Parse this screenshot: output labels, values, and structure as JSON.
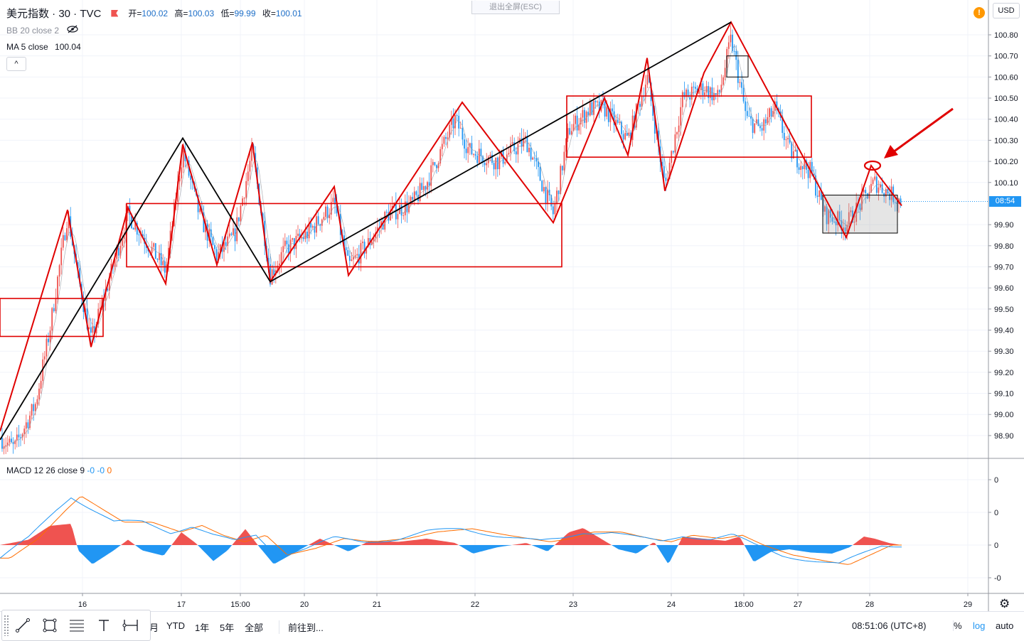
{
  "header": {
    "symbol": "美元指数 · 30 · TVC",
    "open_label": "开=",
    "open": "100.02",
    "high_label": "高=",
    "high": "100.03",
    "low_label": "低=",
    "low": "99.99",
    "close_label": "收=",
    "close": "100.01"
  },
  "indicators": {
    "bb": "BB 20 close 2",
    "ma_label": "MA 5 close",
    "ma_value": "100.04"
  },
  "exit_fullscreen": "退出全屏(ESC)",
  "currency": "USD",
  "price_tag": "08:54",
  "macd": {
    "label": "MACD 12 26 close 9",
    "v1": "-0",
    "v2": "-0",
    "v3": "0"
  },
  "toolbar": {
    "ranges": [
      "月",
      "YTD",
      "1年",
      "5年",
      "全部"
    ],
    "goto": "前往到...",
    "time": "08:51:06 (UTC+8)",
    "percent": "%",
    "log": "log",
    "auto": "auto"
  },
  "colors": {
    "up": "#ef5350",
    "down": "#2196f3",
    "annotation": "#e00000",
    "trend": "#000000",
    "signal": "#ff6d00"
  },
  "chart_data": [
    {
      "type": "candlestick",
      "title": "美元指数 · 30 · TVC",
      "ylim": [
        98.82,
        100.9
      ],
      "yticks": [
        "100.80",
        "100.70",
        "100.60",
        "100.50",
        "100.40",
        "100.30",
        "100.20",
        "100.10",
        "99.90",
        "99.80",
        "99.70",
        "99.60",
        "99.50",
        "99.40",
        "99.30",
        "99.20",
        "99.10",
        "99.00",
        "98.90"
      ],
      "xticks": [
        "16",
        "17",
        "15:00",
        "20",
        "21",
        "22",
        "23",
        "24",
        "18:00",
        "27",
        "28",
        "29"
      ],
      "last_price": "100.01",
      "zigzag_red": [
        [
          0,
          98.92
        ],
        [
          95,
          99.97
        ],
        [
          128,
          99.32
        ],
        [
          180,
          99.98
        ],
        [
          233,
          99.62
        ],
        [
          257,
          100.28
        ],
        [
          305,
          99.71
        ],
        [
          355,
          100.29
        ],
        [
          380,
          99.63
        ],
        [
          470,
          100.08
        ],
        [
          490,
          99.66
        ],
        [
          650,
          100.48
        ],
        [
          778,
          99.91
        ],
        [
          850,
          100.5
        ],
        [
          883,
          100.23
        ],
        [
          910,
          100.69
        ],
        [
          935,
          100.06
        ],
        [
          990,
          100.62
        ],
        [
          1028,
          100.86
        ],
        [
          1190,
          99.84
        ],
        [
          1225,
          100.18
        ],
        [
          1268,
          99.99
        ]
      ],
      "trendline_black": [
        [
          0,
          98.88
        ],
        [
          257,
          100.31
        ],
        [
          380,
          99.63
        ],
        [
          1028,
          100.86
        ]
      ],
      "boxes": [
        {
          "x0": 0,
          "x1": 145,
          "low": 99.37,
          "high": 99.55
        },
        {
          "x0": 178,
          "x1": 790,
          "low": 99.7,
          "high": 100.0
        },
        {
          "x0": 797,
          "x1": 1141,
          "low": 100.22,
          "high": 100.51
        },
        {
          "x0": 1157,
          "x1": 1262,
          "low": 99.86,
          "high": 100.04
        },
        {
          "x0": 1022,
          "x1": 1052,
          "low": 100.6,
          "high": 100.7
        }
      ],
      "candle_path": [
        [
          0,
          98.89
        ],
        [
          20,
          98.84
        ],
        [
          50,
          99.05
        ],
        [
          70,
          99.4
        ],
        [
          95,
          99.95
        ],
        [
          110,
          99.65
        ],
        [
          128,
          99.35
        ],
        [
          150,
          99.6
        ],
        [
          180,
          99.95
        ],
        [
          210,
          99.8
        ],
        [
          233,
          99.68
        ],
        [
          257,
          100.25
        ],
        [
          280,
          99.95
        ],
        [
          305,
          99.75
        ],
        [
          330,
          99.85
        ],
        [
          355,
          100.25
        ],
        [
          380,
          99.66
        ],
        [
          400,
          99.78
        ],
        [
          430,
          99.85
        ],
        [
          470,
          100.0
        ],
        [
          490,
          99.7
        ],
        [
          520,
          99.82
        ],
        [
          545,
          99.95
        ],
        [
          580,
          100.0
        ],
        [
          600,
          100.1
        ],
        [
          640,
          100.4
        ],
        [
          660,
          100.25
        ],
        [
          700,
          100.2
        ],
        [
          740,
          100.3
        ],
        [
          778,
          99.95
        ],
        [
          800,
          100.35
        ],
        [
          830,
          100.45
        ],
        [
          850,
          100.45
        ],
        [
          883,
          100.3
        ],
        [
          910,
          100.6
        ],
        [
          935,
          100.08
        ],
        [
          960,
          100.5
        ],
        [
          990,
          100.55
        ],
        [
          1010,
          100.5
        ],
        [
          1028,
          100.78
        ],
        [
          1050,
          100.4
        ],
        [
          1070,
          100.35
        ],
        [
          1090,
          100.45
        ],
        [
          1110,
          100.25
        ],
        [
          1140,
          100.15
        ],
        [
          1160,
          99.95
        ],
        [
          1190,
          99.9
        ],
        [
          1210,
          100.0
        ],
        [
          1230,
          100.1
        ],
        [
          1250,
          100.05
        ],
        [
          1268,
          100.01
        ]
      ]
    },
    {
      "type": "line",
      "title": "MACD 12 26 close 9",
      "yticks": [
        "0",
        "0",
        "0",
        "-0"
      ],
      "series_path": [
        [
          0,
          -0.2
        ],
        [
          40,
          0.1
        ],
        [
          80,
          0.55
        ],
        [
          100,
          0.75
        ],
        [
          130,
          0.55
        ],
        [
          160,
          0.35
        ],
        [
          200,
          0.35
        ],
        [
          240,
          0.2
        ],
        [
          270,
          0.3
        ],
        [
          300,
          0.15
        ],
        [
          330,
          0.05
        ],
        [
          360,
          0.15
        ],
        [
          390,
          -0.15
        ],
        [
          430,
          -0.05
        ],
        [
          470,
          0.1
        ],
        [
          510,
          0.05
        ],
        [
          560,
          0.1
        ],
        [
          600,
          0.2
        ],
        [
          650,
          0.25
        ],
        [
          700,
          0.15
        ],
        [
          760,
          0.05
        ],
        [
          790,
          0.1
        ],
        [
          820,
          0.2
        ],
        [
          860,
          0.2
        ],
        [
          900,
          0.1
        ],
        [
          930,
          0.05
        ],
        [
          960,
          0.15
        ],
        [
          1000,
          0.1
        ],
        [
          1030,
          0.15
        ],
        [
          1060,
          0.0
        ],
        [
          1100,
          -0.15
        ],
        [
          1150,
          -0.25
        ],
        [
          1180,
          -0.3
        ],
        [
          1210,
          -0.15
        ],
        [
          1240,
          0.0
        ],
        [
          1268,
          0.0
        ]
      ],
      "histogram_path": [
        [
          0,
          0.0
        ],
        [
          40,
          0.05
        ],
        [
          70,
          0.18
        ],
        [
          100,
          0.2
        ],
        [
          110,
          -0.05
        ],
        [
          130,
          -0.18
        ],
        [
          160,
          -0.05
        ],
        [
          180,
          0.05
        ],
        [
          200,
          -0.05
        ],
        [
          230,
          -0.1
        ],
        [
          255,
          0.12
        ],
        [
          275,
          0.02
        ],
        [
          300,
          -0.15
        ],
        [
          320,
          -0.05
        ],
        [
          345,
          0.15
        ],
        [
          365,
          -0.02
        ],
        [
          385,
          -0.18
        ],
        [
          420,
          -0.05
        ],
        [
          450,
          0.06
        ],
        [
          490,
          -0.06
        ],
        [
          520,
          0.04
        ],
        [
          560,
          0.03
        ],
        [
          600,
          0.06
        ],
        [
          640,
          0.02
        ],
        [
          665,
          -0.08
        ],
        [
          700,
          -0.02
        ],
        [
          740,
          0.02
        ],
        [
          770,
          -0.06
        ],
        [
          800,
          0.12
        ],
        [
          820,
          0.16
        ],
        [
          845,
          0.06
        ],
        [
          870,
          -0.04
        ],
        [
          895,
          -0.08
        ],
        [
          920,
          0.03
        ],
        [
          940,
          -0.18
        ],
        [
          960,
          0.08
        ],
        [
          990,
          0.06
        ],
        [
          1020,
          0.04
        ],
        [
          1040,
          0.08
        ],
        [
          1060,
          -0.16
        ],
        [
          1085,
          -0.06
        ],
        [
          1110,
          -0.04
        ],
        [
          1140,
          -0.07
        ],
        [
          1170,
          -0.08
        ],
        [
          1195,
          -0.02
        ],
        [
          1215,
          0.08
        ],
        [
          1230,
          0.06
        ],
        [
          1250,
          0.02
        ],
        [
          1268,
          0.0
        ]
      ]
    }
  ]
}
